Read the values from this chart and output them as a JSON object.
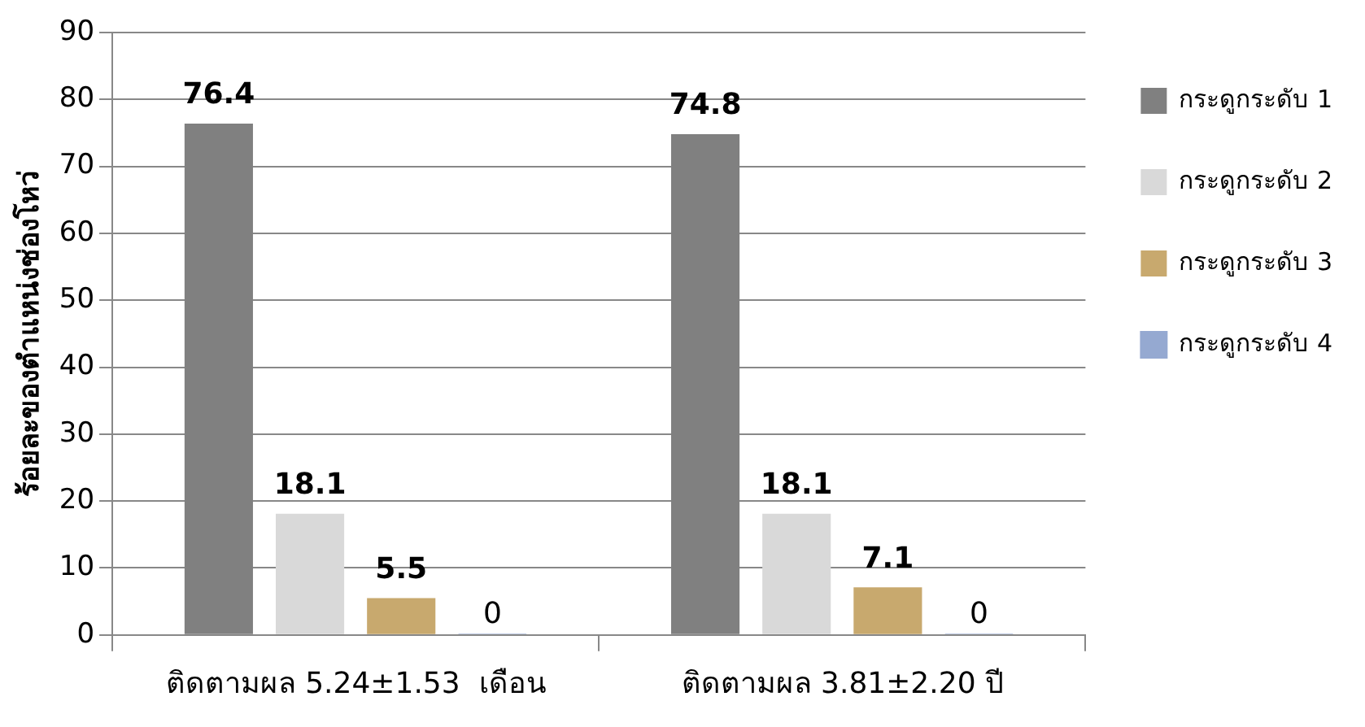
{
  "chart_data": {
    "type": "bar",
    "ylabel": "ร้อยละของตำแหน่งช่องโหว่",
    "categories": [
      "ติดตามผล 5.24±1.53  เดือน",
      "ติดตามผล 3.81±2.20 ปี"
    ],
    "series": [
      {
        "name": "กระดูกระดับ 1",
        "color": "#808080",
        "values": [
          76.4,
          74.8
        ]
      },
      {
        "name": "กระดูกระดับ 2",
        "color": "#d9d9d9",
        "values": [
          18.1,
          18.1
        ]
      },
      {
        "name": "กระดูกระดับ 3",
        "color": "#c8a96e",
        "values": [
          5.5,
          7.1
        ]
      },
      {
        "name": "กระดูกระดับ 4",
        "color": "#95a9d1",
        "values": [
          0,
          0
        ]
      }
    ],
    "ylim": [
      0,
      90
    ],
    "yticks": [
      0,
      10,
      20,
      30,
      40,
      50,
      60,
      70,
      80,
      90
    ],
    "grid": "y",
    "legend": "right",
    "data_labels": true
  }
}
